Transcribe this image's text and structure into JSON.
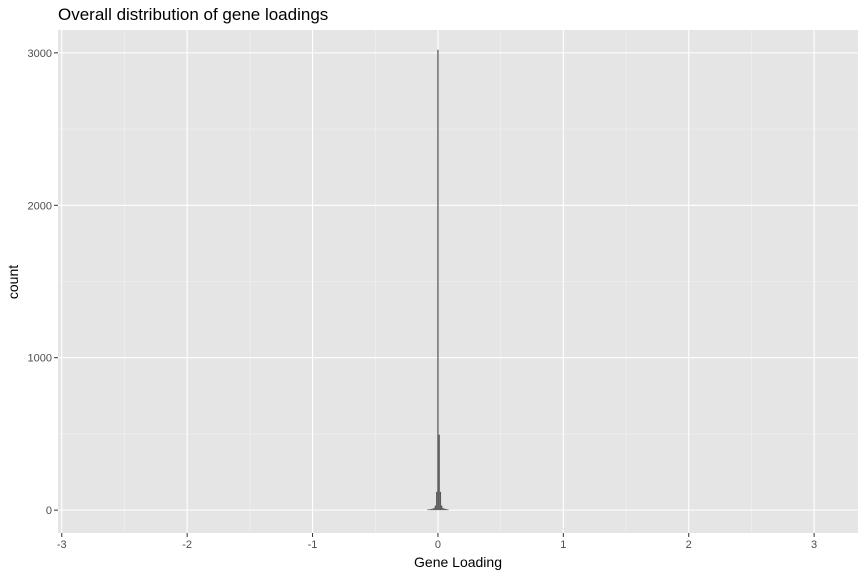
{
  "chart_data": {
    "type": "bar",
    "title": "Overall distribution of gene loadings",
    "xlabel": "Gene Loading",
    "ylabel": "count",
    "xlim": [
      -3.03,
      3.35
    ],
    "ylim": [
      -150,
      3150
    ],
    "x_ticks": [
      -3,
      -2,
      -1,
      0,
      1,
      2,
      3
    ],
    "x_tick_labels": [
      "-3",
      "-2",
      "-1",
      "0",
      "1",
      "2",
      "3"
    ],
    "y_ticks": [
      0,
      1000,
      2000,
      3000
    ],
    "y_tick_labels": [
      "0",
      "1000",
      "2000",
      "3000"
    ],
    "grid": true,
    "legend": "none",
    "bin_width": 0.01,
    "bin_centers": [
      -0.08,
      -0.07,
      -0.06,
      -0.05,
      -0.04,
      -0.03,
      -0.02,
      -0.01,
      0.0,
      0.01,
      0.02,
      0.03,
      0.04,
      0.05,
      0.06,
      0.07,
      0.08
    ],
    "values": [
      4,
      5,
      6,
      8,
      10,
      15,
      30,
      120,
      3020,
      495,
      120,
      30,
      15,
      10,
      8,
      6,
      4
    ],
    "colors": {
      "panel": "#e5e5e5",
      "grid_major": "#ffffff",
      "grid_minor": "#f1f1f1",
      "bar": "#595959",
      "tick": "#333333"
    }
  }
}
